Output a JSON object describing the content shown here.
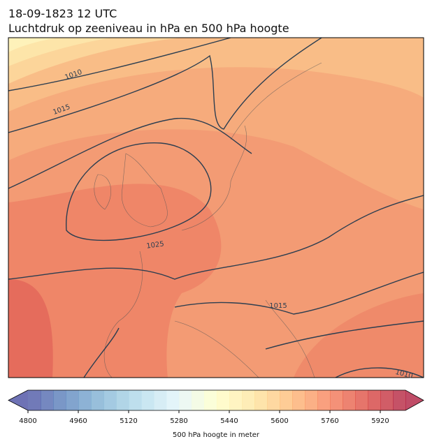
{
  "header": {
    "title": "18-09-1823 12 UTC",
    "subtitle": "Luchtdruk op zeeniveau in hPa en 500 hPa hoogte"
  },
  "map": {
    "isobar_labels": [
      1010,
      1015,
      1025,
      1015,
      1010
    ]
  },
  "colorbar": {
    "label": "500 hPa hoogte in meter",
    "range": [
      4800,
      6000
    ],
    "ticks": [
      4800,
      4960,
      5120,
      5280,
      5440,
      5600,
      5760,
      5920
    ]
  }
}
